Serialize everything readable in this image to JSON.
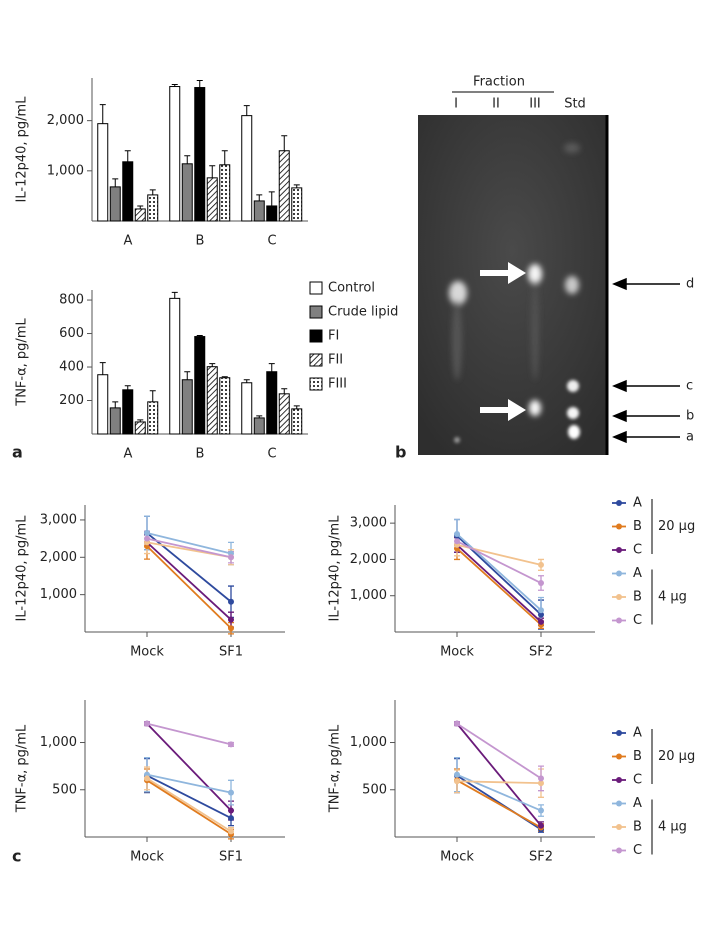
{
  "chart_data": [
    {
      "type": "bar",
      "ylabel": "IL-12p40, pg/mL",
      "categories": [
        "A",
        "B",
        "C"
      ],
      "ylim": [
        0,
        2850
      ],
      "yticks": [
        {
          "value": 1000,
          "label": "1,000"
        },
        {
          "value": 2000,
          "label": "2,000"
        }
      ],
      "series": [
        {
          "color": "#ffffff",
          "pattern": null,
          "values": [
            1940,
            2680,
            2100
          ],
          "errors": [
            380,
            40,
            200
          ]
        },
        {
          "color": "#808080",
          "pattern": null,
          "values": [
            680,
            1140,
            400
          ],
          "errors": [
            160,
            160,
            120
          ]
        },
        {
          "color": "#000000",
          "pattern": null,
          "values": [
            1180,
            2660,
            300
          ],
          "errors": [
            220,
            140,
            280
          ]
        },
        {
          "color": "#ffffff",
          "pattern": "hatch",
          "values": [
            240,
            860,
            1400
          ],
          "errors": [
            60,
            240,
            300
          ]
        },
        {
          "color": "#ffffff",
          "pattern": "dots",
          "values": [
            520,
            1120,
            660
          ],
          "errors": [
            100,
            280,
            60
          ]
        }
      ]
    },
    {
      "type": "bar",
      "ylabel": "TNF-α, pg/mL",
      "categories": [
        "A",
        "B",
        "C"
      ],
      "ylim": [
        0,
        860
      ],
      "yticks": [
        200,
        400,
        600,
        800
      ],
      "legend": "right",
      "series": [
        {
          "name": "Control",
          "color": "#ffffff",
          "pattern": null,
          "values": [
            354,
            810,
            306
          ],
          "errors": [
            72,
            36,
            18
          ]
        },
        {
          "name": "Crude lipid",
          "color": "#808080",
          "pattern": null,
          "values": [
            156,
            324,
            96
          ],
          "errors": [
            36,
            48,
            12
          ]
        },
        {
          "name": "FI",
          "color": "#000000",
          "pattern": null,
          "values": [
            264,
            582,
            372
          ],
          "errors": [
            24,
            6,
            48
          ]
        },
        {
          "name": "FII",
          "color": "#ffffff",
          "pattern": "hatch",
          "values": [
            72,
            402,
            240
          ],
          "errors": [
            12,
            18,
            30
          ]
        },
        {
          "name": "FIII",
          "color": "#ffffff",
          "pattern": "dots",
          "values": [
            192,
            336,
            150
          ],
          "errors": [
            66,
            6,
            18
          ]
        }
      ]
    },
    {
      "type": "line",
      "ylabel": "IL-12p40, pg/mL",
      "categories": [
        "Mock",
        "SF1"
      ],
      "ylim": [
        0,
        3400
      ],
      "yticks": [
        {
          "value": 1000,
          "label": "1,000"
        },
        {
          "value": 2000,
          "label": "2,000"
        },
        {
          "value": 3000,
          "label": "3,000"
        }
      ],
      "series": [
        {
          "color": "#2e4a9e",
          "values": [
            2650,
            810
          ],
          "errors": [
            450,
            420
          ]
        },
        {
          "color": "#e07b1e",
          "values": [
            2300,
            100
          ],
          "errors": [
            350,
            150
          ]
        },
        {
          "color": "#6a1b7a",
          "values": [
            2400,
            330
          ],
          "errors": [
            200,
            200
          ]
        },
        {
          "color": "#8fb6dd",
          "values": [
            2650,
            2100
          ],
          "errors": [
            450,
            300
          ]
        },
        {
          "color": "#f2c28e",
          "values": [
            2400,
            2000
          ],
          "errors": [
            300,
            200
          ]
        },
        {
          "color": "#c496cf",
          "values": [
            2500,
            2000
          ],
          "errors": [
            200,
            150
          ]
        }
      ]
    },
    {
      "type": "line",
      "ylabel": "IL-12p40, pg/mL",
      "categories": [
        "Mock",
        "SF2"
      ],
      "ylim": [
        0,
        3500
      ],
      "yticks": [
        {
          "value": 1000,
          "label": "1,000"
        },
        {
          "value": 2000,
          "label": "2,000"
        },
        {
          "value": 3000,
          "label": "3,000"
        }
      ],
      "legend": "right",
      "legend_groups": [
        "20 µg",
        "4 µg"
      ],
      "series": [
        {
          "name": "A",
          "color": "#2e4a9e",
          "values": [
            2650,
            480
          ],
          "errors": [
            450,
            400
          ]
        },
        {
          "name": "B",
          "color": "#e07b1e",
          "values": [
            2300,
            200
          ],
          "errors": [
            300,
            100
          ]
        },
        {
          "name": "C",
          "color": "#6a1b7a",
          "values": [
            2400,
            280
          ],
          "errors": [
            200,
            100
          ]
        },
        {
          "name": "A",
          "color": "#8fb6dd",
          "values": [
            2700,
            600
          ],
          "errors": [
            400,
            350
          ]
        },
        {
          "name": "B",
          "color": "#f2c28e",
          "values": [
            2400,
            1850
          ],
          "errors": [
            300,
            150
          ]
        },
        {
          "name": "C",
          "color": "#c496cf",
          "values": [
            2500,
            1350
          ],
          "errors": [
            200,
            200
          ]
        }
      ]
    },
    {
      "type": "line",
      "ylabel": "TNF-α, pg/mL",
      "categories": [
        "Mock",
        "SF1"
      ],
      "ylim": [
        0,
        1450
      ],
      "yticks": [
        500,
        {
          "value": 1000,
          "label": "1,000"
        }
      ],
      "series": [
        {
          "color": "#2e4a9e",
          "values": [
            650,
            200
          ],
          "errors": [
            180,
            80
          ]
        },
        {
          "color": "#e07b1e",
          "values": [
            600,
            30
          ],
          "errors": [
            120,
            50
          ]
        },
        {
          "color": "#6a1b7a",
          "values": [
            1200,
            280
          ],
          "errors": [
            20,
            100
          ]
        },
        {
          "color": "#8fb6dd",
          "values": [
            660,
            470
          ],
          "errors": [
            180,
            130
          ]
        },
        {
          "color": "#f2c28e",
          "values": [
            620,
            60
          ],
          "errors": [
            120,
            40
          ]
        },
        {
          "color": "#c496cf",
          "values": [
            1200,
            980
          ],
          "errors": [
            20,
            20
          ]
        }
      ]
    },
    {
      "type": "line",
      "ylabel": "TNF-α, pg/mL",
      "categories": [
        "Mock",
        "SF2"
      ],
      "ylim": [
        0,
        1450
      ],
      "yticks": [
        500,
        {
          "value": 1000,
          "label": "1,000"
        }
      ],
      "legend": "right",
      "legend_groups": [
        "20 µg",
        "4 µg"
      ],
      "series": [
        {
          "name": "A",
          "color": "#2e4a9e",
          "values": [
            650,
            80
          ],
          "errors": [
            180,
            30
          ]
        },
        {
          "name": "B",
          "color": "#e07b1e",
          "values": [
            600,
            100
          ],
          "errors": [
            120,
            40
          ]
        },
        {
          "name": "C",
          "color": "#6a1b7a",
          "values": [
            1200,
            120
          ],
          "errors": [
            20,
            40
          ]
        },
        {
          "name": "A",
          "color": "#8fb6dd",
          "values": [
            660,
            280
          ],
          "errors": [
            180,
            60
          ]
        },
        {
          "name": "B",
          "color": "#f2c28e",
          "values": [
            590,
            570
          ],
          "errors": [
            120,
            150
          ]
        },
        {
          "name": "C",
          "color": "#c496cf",
          "values": [
            1200,
            620
          ],
          "errors": [
            20,
            130
          ]
        }
      ]
    }
  ],
  "panel_labels": [
    "a",
    "b",
    "c"
  ],
  "tlc": {
    "header": "Fraction",
    "lanes": [
      "I",
      "II",
      "III",
      "Std"
    ],
    "bands": [
      "d",
      "c",
      "b",
      "a"
    ]
  }
}
